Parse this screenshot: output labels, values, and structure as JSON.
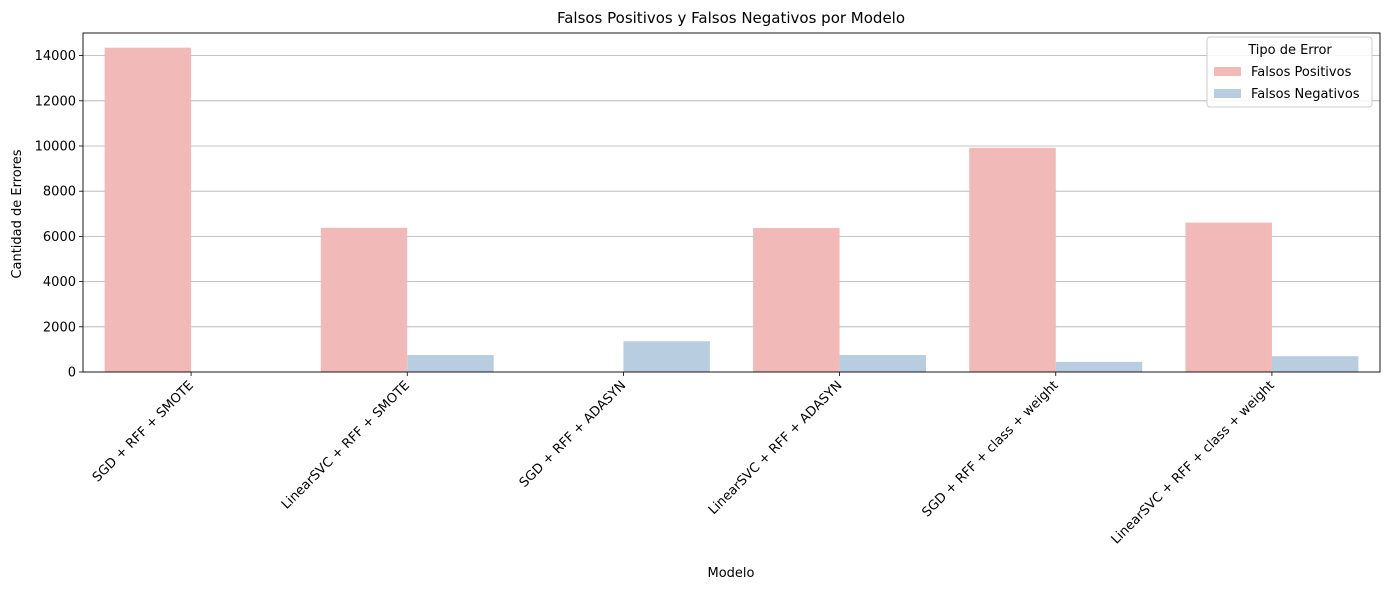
{
  "chart_data": {
    "type": "bar",
    "title": "Falsos Positivos y Falsos Negativos por Modelo",
    "xlabel": "Modelo",
    "ylabel": "Cantidad de Errores",
    "categories": [
      "SGD + RFF + SMOTE",
      "LinearSVC + RFF + SMOTE",
      "SGD + RFF + ADASYN",
      "LinearSVC + RFF + ADASYN",
      "SGD + RFF + class + weight",
      "LinearSVC + RFF + class + weight"
    ],
    "series": [
      {
        "name": "Falsos Positivos",
        "color": "#f1b9b7",
        "values": [
          14350,
          6380,
          0,
          6370,
          9920,
          6610
        ]
      },
      {
        "name": "Falsos Negativos",
        "color": "#b9cde0",
        "values": [
          0,
          750,
          1360,
          750,
          450,
          700
        ]
      }
    ],
    "ylim": [
      0,
      15000
    ],
    "yticks": [
      0,
      2000,
      4000,
      6000,
      8000,
      10000,
      12000,
      14000
    ],
    "grid": "horizontal",
    "legend": {
      "title": "Tipo de Error",
      "position": "top-right"
    }
  }
}
